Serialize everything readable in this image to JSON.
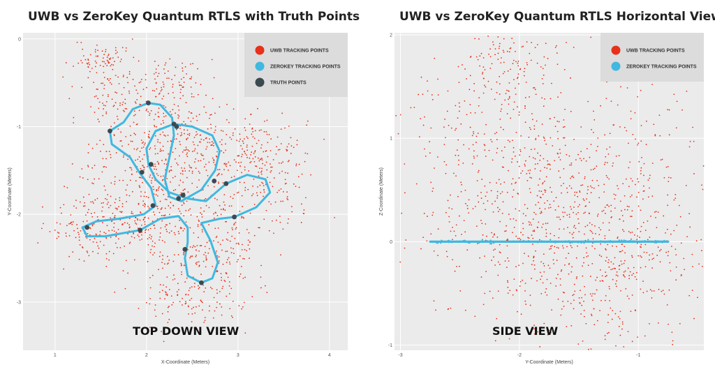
{
  "chart_data": [
    {
      "type": "scatter",
      "title": "UWB vs ZeroKey Quantum RTLS with Truth Points",
      "xlabel": "X-Coordinate (Meters)",
      "ylabel": "Y-Coordinate (Meters)",
      "xlim": [
        0.65,
        4.2
      ],
      "ylim": [
        -3.55,
        0.07
      ],
      "x_ticks": [
        "1",
        "2",
        "3",
        "4"
      ],
      "y_ticks": [
        "0",
        "-1",
        "-2",
        "-3"
      ],
      "annotation": "TOP DOWN VIEW",
      "grid": true,
      "legend_position": "top-right",
      "series": [
        {
          "name": "UWB TRACKING POINTS",
          "color": "#e8301a",
          "style": "points",
          "clusters": [
            {
              "center": [
                1.5,
                -0.2
              ],
              "spread": [
                0.15,
                0.1
              ],
              "count": 60
            },
            {
              "center": [
                1.65,
                -0.7
              ],
              "spread": [
                0.2,
                0.3
              ],
              "count": 120
            },
            {
              "center": [
                2.25,
                -0.5
              ],
              "spread": [
                0.2,
                0.15
              ],
              "count": 90
            },
            {
              "center": [
                2.35,
                -1.1
              ],
              "spread": [
                0.3,
                0.25
              ],
              "count": 180
            },
            {
              "center": [
                1.95,
                -1.45
              ],
              "spread": [
                0.3,
                0.2
              ],
              "count": 140
            },
            {
              "center": [
                3.05,
                -1.2
              ],
              "spread": [
                0.3,
                0.2
              ],
              "count": 120
            },
            {
              "center": [
                3.3,
                -1.55
              ],
              "spread": [
                0.25,
                0.3
              ],
              "count": 150
            },
            {
              "center": [
                1.75,
                -2.1
              ],
              "spread": [
                0.35,
                0.18
              ],
              "count": 170
            },
            {
              "center": [
                1.35,
                -2.2
              ],
              "spread": [
                0.22,
                0.2
              ],
              "count": 80
            },
            {
              "center": [
                2.5,
                -1.9
              ],
              "spread": [
                0.35,
                0.3
              ],
              "count": 180
            },
            {
              "center": [
                2.45,
                -2.55
              ],
              "spread": [
                0.3,
                0.35
              ],
              "count": 160
            },
            {
              "center": [
                2.9,
                -2.5
              ],
              "spread": [
                0.15,
                0.3
              ],
              "count": 80
            },
            {
              "center": [
                2.5,
                -3.0
              ],
              "spread": [
                0.3,
                0.12
              ],
              "count": 70
            }
          ]
        },
        {
          "name": "ZEROKEY TRACKING POINTS",
          "color": "#40b8e0",
          "style": "path",
          "path": [
            [
              2.02,
              -0.73
            ],
            [
              1.85,
              -0.8
            ],
            [
              1.75,
              -0.95
            ],
            [
              1.6,
              -1.05
            ],
            [
              1.62,
              -1.2
            ],
            [
              1.82,
              -1.35
            ],
            [
              1.92,
              -1.52
            ],
            [
              2.05,
              -1.7
            ],
            [
              2.1,
              -1.9
            ],
            [
              1.97,
              -2.0
            ],
            [
              1.7,
              -2.05
            ],
            [
              1.45,
              -2.08
            ],
            [
              1.3,
              -2.15
            ],
            [
              1.35,
              -2.25
            ],
            [
              1.55,
              -2.25
            ],
            [
              1.93,
              -2.18
            ],
            [
              2.15,
              -2.05
            ],
            [
              2.35,
              -2.02
            ],
            [
              2.45,
              -2.15
            ],
            [
              2.45,
              -2.32
            ],
            [
              2.42,
              -2.5
            ],
            [
              2.45,
              -2.7
            ],
            [
              2.6,
              -2.78
            ],
            [
              2.72,
              -2.73
            ],
            [
              2.78,
              -2.55
            ],
            [
              2.7,
              -2.3
            ],
            [
              2.6,
              -2.1
            ],
            [
              2.8,
              -2.05
            ],
            [
              2.96,
              -2.03
            ],
            [
              3.2,
              -1.92
            ],
            [
              3.35,
              -1.75
            ],
            [
              3.3,
              -1.6
            ],
            [
              3.1,
              -1.55
            ],
            [
              2.87,
              -1.65
            ],
            [
              2.65,
              -1.85
            ],
            [
              2.45,
              -1.82
            ],
            [
              2.25,
              -1.75
            ],
            [
              2.1,
              -1.6
            ],
            [
              2.02,
              -1.43
            ],
            [
              2.0,
              -1.25
            ],
            [
              2.1,
              -1.05
            ],
            [
              2.3,
              -0.97
            ],
            [
              2.5,
              -1.0
            ],
            [
              2.72,
              -1.1
            ],
            [
              2.8,
              -1.28
            ],
            [
              2.75,
              -1.5
            ],
            [
              2.6,
              -1.72
            ],
            [
              2.38,
              -1.85
            ],
            [
              2.25,
              -1.8
            ],
            [
              2.2,
              -1.6
            ],
            [
              2.25,
              -1.35
            ],
            [
              2.3,
              -1.1
            ],
            [
              2.28,
              -0.9
            ],
            [
              2.15,
              -0.75
            ],
            [
              2.02,
              -0.73
            ]
          ]
        },
        {
          "name": "TRUTH POINTS",
          "color": "#3b4a50",
          "style": "markers",
          "x": [
            2.02,
            1.6,
            2.3,
            2.33,
            2.05,
            1.95,
            2.07,
            2.35,
            2.4,
            2.74,
            2.87,
            1.93,
            1.35,
            2.42,
            2.6,
            2.96
          ],
          "y": [
            -0.73,
            -1.05,
            -0.97,
            -1.0,
            -1.43,
            -1.52,
            -1.9,
            -1.82,
            -1.78,
            -1.62,
            -1.65,
            -2.18,
            -2.15,
            -2.4,
            -2.78,
            -2.03
          ]
        }
      ]
    },
    {
      "type": "scatter",
      "title": "UWB vs ZeroKey Quantum RTLS Horizontal View",
      "xlabel": "Y-Coordinate (Meters)",
      "ylabel": "Z-Coordinate (Meters)",
      "xlim": [
        -3.05,
        -0.45
      ],
      "ylim": [
        -1.05,
        2.02
      ],
      "x_ticks": [
        "-3",
        "-2",
        "-1"
      ],
      "y_ticks": [
        "2",
        "1",
        "0",
        "-1"
      ],
      "annotation": "SIDE VIEW",
      "grid": true,
      "legend_position": "top-right",
      "series": [
        {
          "name": "UWB TRACKING POINTS",
          "color": "#e8301a",
          "style": "points",
          "clusters": [
            {
              "center": [
                -2.1,
                1.7
              ],
              "spread": [
                0.2,
                0.2
              ],
              "count": 110
            },
            {
              "center": [
                -1.75,
                0.4
              ],
              "spread": [
                0.45,
                0.6
              ],
              "count": 500
            },
            {
              "center": [
                -1.3,
                -0.3
              ],
              "spread": [
                0.4,
                0.4
              ],
              "count": 280
            },
            {
              "center": [
                -2.5,
                0.8
              ],
              "spread": [
                0.3,
                0.6
              ],
              "count": 120
            },
            {
              "center": [
                -0.85,
                0.2
              ],
              "spread": [
                0.25,
                0.55
              ],
              "count": 120
            },
            {
              "center": [
                -1.75,
                0.5
              ],
              "spread": [
                0.7,
                0.8
              ],
              "count": 200
            }
          ]
        },
        {
          "name": "ZEROKEY TRACKING POINTS",
          "color": "#40b8e0",
          "style": "band",
          "x0": -2.75,
          "x1": -0.75,
          "y": 0.0
        }
      ]
    }
  ]
}
